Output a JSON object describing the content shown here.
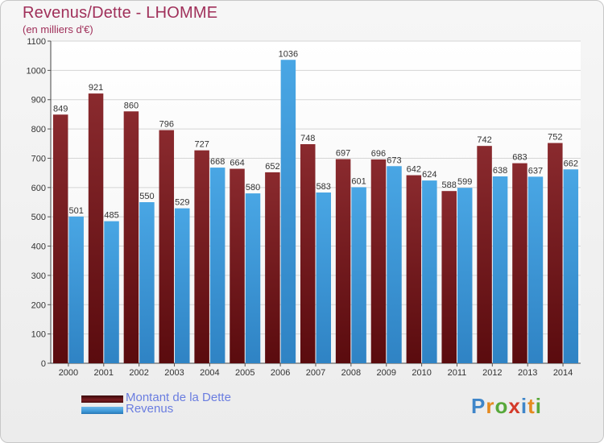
{
  "chart_data": {
    "type": "bar",
    "title": "Revenus/Dette - LHOMME",
    "subtitle": "(en milliers d'€)",
    "categories": [
      "2000",
      "2001",
      "2002",
      "2003",
      "2004",
      "2005",
      "2006",
      "2007",
      "2008",
      "2009",
      "2010",
      "2011",
      "2012",
      "2013",
      "2014"
    ],
    "series": [
      {
        "name": "Montant de la Dette",
        "values": [
          849,
          921,
          860,
          796,
          727,
          664,
          652,
          748,
          697,
          696,
          642,
          588,
          742,
          683,
          752
        ],
        "color": "#7a1e22"
      },
      {
        "name": "Revenus",
        "values": [
          501,
          485,
          550,
          529,
          668,
          580,
          1036,
          583,
          601,
          673,
          624,
          599,
          638,
          637,
          662
        ],
        "color": "#3f9ad9"
      }
    ],
    "ylim": [
      0,
      1100
    ],
    "yticks": [
      0,
      100,
      200,
      300,
      400,
      500,
      600,
      700,
      800,
      900,
      1000,
      1100
    ],
    "grid": true,
    "legend_position": "bottom-left"
  },
  "logo_text": "Proxiti"
}
